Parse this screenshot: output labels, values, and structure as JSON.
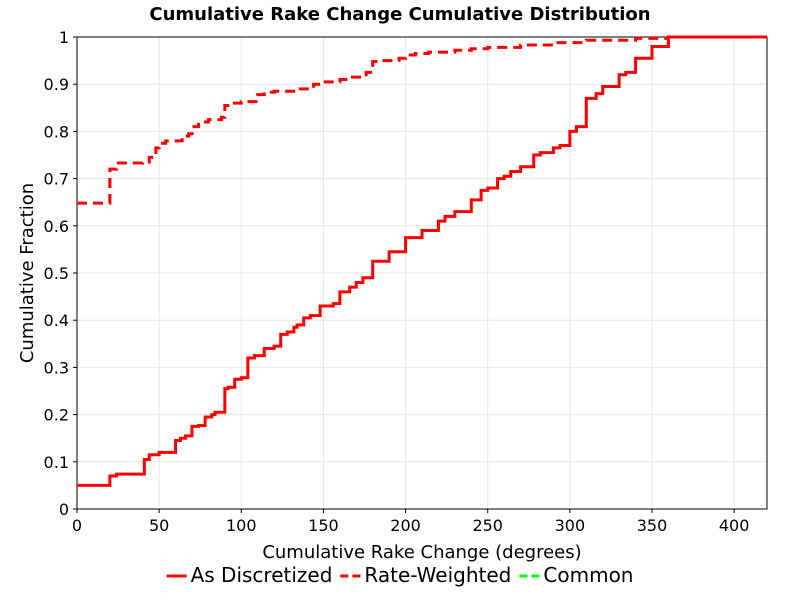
{
  "chart_data": {
    "type": "line",
    "title": "Cumulative Rake Change Cumulative Distribution",
    "xlabel": "Cumulative Rake Change (degrees)",
    "ylabel": "Cumulative Fraction",
    "xlim": [
      0,
      420
    ],
    "ylim": [
      0,
      1
    ],
    "x_ticks": [
      0,
      50,
      100,
      150,
      200,
      250,
      300,
      350,
      400
    ],
    "y_ticks": [
      0,
      0.1,
      0.2,
      0.3,
      0.4,
      0.5,
      0.6,
      0.7,
      0.8,
      0.9,
      1
    ],
    "y_tick_labels": [
      "0",
      "0.1",
      "0.2",
      "0.3",
      "0.4",
      "0.5",
      "0.6",
      "0.7",
      "0.8",
      "0.9",
      "1"
    ],
    "grid": true,
    "legend_position": "bottom",
    "series": [
      {
        "name": "As Discretized",
        "color": "#ff0000",
        "dash": "solid",
        "step": true,
        "x": [
          0,
          18,
          20,
          24,
          39,
          41,
          44,
          50,
          60,
          63,
          66,
          70,
          74,
          78,
          82,
          84,
          90,
          92,
          96,
          100,
          104,
          108,
          114,
          120,
          124,
          128,
          132,
          134,
          138,
          142,
          148,
          156,
          160,
          166,
          170,
          174,
          180,
          190,
          200,
          210,
          220,
          224,
          230,
          240,
          246,
          250,
          256,
          260,
          264,
          270,
          278,
          282,
          290,
          294,
          300,
          304,
          310,
          316,
          320,
          330,
          334,
          340,
          350,
          360,
          420
        ],
        "y": [
          0.05,
          0.05,
          0.07,
          0.074,
          0.074,
          0.105,
          0.115,
          0.12,
          0.145,
          0.15,
          0.155,
          0.175,
          0.177,
          0.195,
          0.2,
          0.205,
          0.255,
          0.258,
          0.275,
          0.278,
          0.32,
          0.325,
          0.34,
          0.345,
          0.37,
          0.375,
          0.385,
          0.39,
          0.405,
          0.41,
          0.43,
          0.435,
          0.46,
          0.47,
          0.48,
          0.49,
          0.525,
          0.545,
          0.575,
          0.59,
          0.61,
          0.62,
          0.63,
          0.655,
          0.675,
          0.68,
          0.7,
          0.705,
          0.715,
          0.725,
          0.75,
          0.755,
          0.765,
          0.77,
          0.8,
          0.81,
          0.87,
          0.88,
          0.895,
          0.92,
          0.925,
          0.955,
          0.98,
          1.0,
          1.0
        ]
      },
      {
        "name": "Rate-Weighted",
        "color": "#ff0000",
        "dash": "dashed",
        "step": true,
        "x": [
          0,
          18,
          20,
          24,
          40,
          44,
          48,
          50,
          54,
          60,
          64,
          68,
          70,
          74,
          80,
          88,
          90,
          94,
          100,
          110,
          114,
          120,
          134,
          144,
          150,
          160,
          166,
          176,
          180,
          184,
          196,
          200,
          206,
          214,
          230,
          240,
          250,
          270,
          290,
          310,
          340,
          360,
          420
        ],
        "y": [
          0.648,
          0.648,
          0.72,
          0.733,
          0.735,
          0.745,
          0.765,
          0.775,
          0.78,
          0.78,
          0.79,
          0.795,
          0.81,
          0.82,
          0.825,
          0.83,
          0.855,
          0.86,
          0.863,
          0.878,
          0.883,
          0.885,
          0.89,
          0.9,
          0.905,
          0.91,
          0.915,
          0.925,
          0.948,
          0.95,
          0.955,
          0.962,
          0.965,
          0.968,
          0.972,
          0.975,
          0.978,
          0.983,
          0.988,
          0.993,
          0.997,
          1.0,
          1.0
        ]
      },
      {
        "name": "Common",
        "color": "#00ff00",
        "dash": "dashed",
        "step": true,
        "x": [],
        "y": []
      }
    ]
  }
}
